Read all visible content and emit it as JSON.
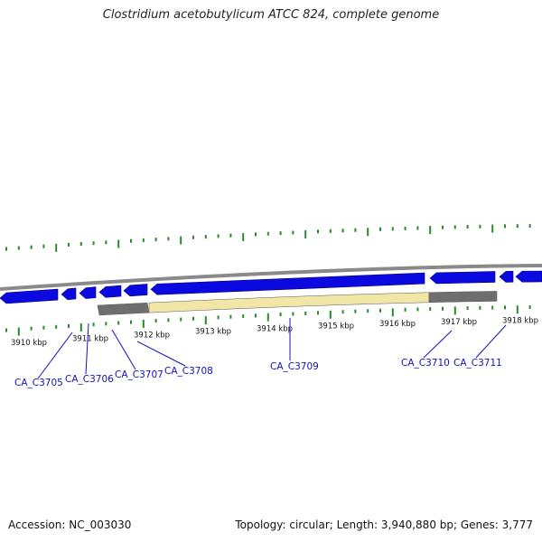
{
  "title": "Clostridium acetobutylicum ATCC 824, complete genome",
  "footer": {
    "accession": "Accession: NC_003030",
    "stats": "Topology: circular; Length: 3,940,880 bp; Genes: 3,777"
  },
  "colors": {
    "gene_arrow": "#0a0ae0",
    "feature_fill": "#f2e6a6",
    "feature_grey": "#6e6e6e",
    "backbone": "#8a8a8a",
    "tick": "#2a8a2a",
    "gene_label": "#1010c0"
  },
  "kbp_labels": [
    {
      "kbp": 3910,
      "text": "3910 kbp"
    },
    {
      "kbp": 3911,
      "text": "3911 kbp"
    },
    {
      "kbp": 3912,
      "text": "3912 kbp"
    },
    {
      "kbp": 3913,
      "text": "3913 kbp"
    },
    {
      "kbp": 3914,
      "text": "3914 kbp"
    },
    {
      "kbp": 3915,
      "text": "3915 kbp"
    },
    {
      "kbp": 3916,
      "text": "3916 kbp"
    },
    {
      "kbp": 3917,
      "text": "3917 kbp"
    },
    {
      "kbp": 3918,
      "text": "3918 kbp"
    }
  ],
  "genes": [
    {
      "id": "CA_C3705"
    },
    {
      "id": "CA_C3706"
    },
    {
      "id": "CA_C3707"
    },
    {
      "id": "CA_C3708"
    },
    {
      "id": "CA_C3709"
    },
    {
      "id": "CA_C3710"
    },
    {
      "id": "CA_C3711"
    }
  ]
}
